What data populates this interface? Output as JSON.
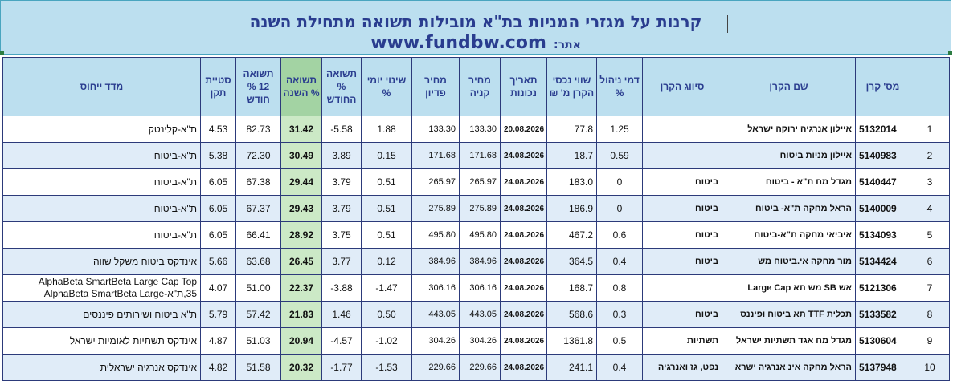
{
  "header": {
    "title": "קרנות על מגזרי המניות בת\"א מובילות תשואה מתחילת השנה",
    "site_label": "אתר:",
    "site_url": "www.fundbw.com"
  },
  "table": {
    "columns": {
      "idx": "",
      "fund_id": "מס' קרן",
      "fund_name": "שם הקרן",
      "classification": "סיווג הקרן",
      "mgmt_fee": "דמי ניהול %",
      "assets": "שווי נכסי הקרן מ' ₪",
      "valid_date": "תאריך נכונות",
      "buy_price": "מחיר קניה",
      "redemption_price": "מחיר פדיון",
      "daily_change": "שינוי יומי %",
      "month_return": "תשואה % החודש",
      "ytd_return": "תשואה % השנה",
      "return_12m": "תשואה 12 % חודש",
      "std_dev": "סטיית תקן",
      "benchmark": "מדד ייחוס"
    },
    "rows": [
      {
        "idx": "1",
        "fund_id": "5132014",
        "fund_name": "איילון אנרגיה ירוקה ישראל",
        "classification": "",
        "mgmt_fee": "1.25",
        "assets": "77.8",
        "valid_date": "20.08.2026",
        "buy_price": "133.30",
        "redemption_price": "133.30",
        "daily_change": "1.88",
        "month_return": "-5.58",
        "ytd_return": "31.42",
        "return_12m": "82.73",
        "std_dev": "4.53",
        "benchmark": "ת\"א-קלינטק"
      },
      {
        "idx": "2",
        "fund_id": "5140983",
        "fund_name": "איילון מניות ביטוח",
        "classification": "",
        "mgmt_fee": "0.59",
        "assets": "18.7",
        "valid_date": "24.08.2026",
        "buy_price": "171.68",
        "redemption_price": "171.68",
        "daily_change": "0.15",
        "month_return": "3.89",
        "ytd_return": "30.49",
        "return_12m": "72.30",
        "std_dev": "5.38",
        "benchmark": "ת\"א-ביטוח"
      },
      {
        "idx": "3",
        "fund_id": "5140447",
        "fund_name": "מגדל מח ת\"א - ביטוח",
        "classification": "ביטוח",
        "mgmt_fee": "0",
        "assets": "183.0",
        "valid_date": "24.08.2026",
        "buy_price": "265.97",
        "redemption_price": "265.97",
        "daily_change": "0.51",
        "month_return": "3.79",
        "ytd_return": "29.44",
        "return_12m": "67.38",
        "std_dev": "6.05",
        "benchmark": "ת\"א-ביטוח"
      },
      {
        "idx": "4",
        "fund_id": "5140009",
        "fund_name": "הראל מחקה ת\"א- ביטוח",
        "classification": "ביטוח",
        "mgmt_fee": "0",
        "assets": "186.9",
        "valid_date": "24.08.2026",
        "buy_price": "275.89",
        "redemption_price": "275.89",
        "daily_change": "0.51",
        "month_return": "3.79",
        "ytd_return": "29.43",
        "return_12m": "67.37",
        "std_dev": "6.05",
        "benchmark": "ת\"א-ביטוח"
      },
      {
        "idx": "5",
        "fund_id": "5134093",
        "fund_name": "איביאי מחקה ת\"א-ביטוח",
        "classification": "ביטוח",
        "mgmt_fee": "0.6",
        "assets": "467.2",
        "valid_date": "24.08.2026",
        "buy_price": "495.80",
        "redemption_price": "495.80",
        "daily_change": "0.51",
        "month_return": "3.75",
        "ytd_return": "28.92",
        "return_12m": "66.41",
        "std_dev": "6.05",
        "benchmark": "ת\"א-ביטוח"
      },
      {
        "idx": "6",
        "fund_id": "5134424",
        "fund_name": "מור מחקה אי.ביטוח מש",
        "classification": "ביטוח",
        "mgmt_fee": "0.4",
        "assets": "364.5",
        "valid_date": "24.08.2026",
        "buy_price": "384.96",
        "redemption_price": "384.96",
        "daily_change": "0.12",
        "month_return": "3.77",
        "ytd_return": "26.45",
        "return_12m": "63.68",
        "std_dev": "5.66",
        "benchmark": "אינדקס ביטוח משקל שווה"
      },
      {
        "idx": "7",
        "fund_id": "5121306",
        "fund_name": "אש SB מש תא Large Cap",
        "classification": "",
        "mgmt_fee": "0.8",
        "assets": "168.7",
        "valid_date": "24.08.2026",
        "buy_price": "306.16",
        "redemption_price": "306.16",
        "daily_change": "-1.47",
        "month_return": "-3.88",
        "ytd_return": "22.37",
        "return_12m": "51.00",
        "std_dev": "4.07",
        "benchmark": "AlphaBeta SmartBeta Large Cap Top 35,ת\"א-AlphaBeta SmartBeta Large"
      },
      {
        "idx": "8",
        "fund_id": "5133582",
        "fund_name": "תכלית TTF תא ביטוח ופיננס",
        "classification": "ביטוח",
        "mgmt_fee": "0.3",
        "assets": "568.6",
        "valid_date": "24.08.2026",
        "buy_price": "443.05",
        "redemption_price": "443.05",
        "daily_change": "0.50",
        "month_return": "1.46",
        "ytd_return": "21.83",
        "return_12m": "57.42",
        "std_dev": "5.79",
        "benchmark": "ת\"א ביטוח ושירותים פיננסים"
      },
      {
        "idx": "9",
        "fund_id": "5130604",
        "fund_name": "מגדל מח אגד תשתיות ישראל",
        "classification": "תשתיות",
        "mgmt_fee": "0.5",
        "assets": "1361.8",
        "valid_date": "24.08.2026",
        "buy_price": "304.26",
        "redemption_price": "304.26",
        "daily_change": "-1.02",
        "month_return": "-4.57",
        "ytd_return": "20.94",
        "return_12m": "51.03",
        "std_dev": "4.87",
        "benchmark": "אינדקס תשתיות לאומיות ישראל"
      },
      {
        "idx": "10",
        "fund_id": "5137948",
        "fund_name": "הראל מחקה אינ אנרגיה ישרא",
        "classification": "נפט, גז ואנרגיה",
        "mgmt_fee": "0.4",
        "assets": "241.1",
        "valid_date": "24.08.2026",
        "buy_price": "229.66",
        "redemption_price": "229.66",
        "daily_change": "-1.53",
        "month_return": "-1.77",
        "ytd_return": "20.32",
        "return_12m": "51.58",
        "std_dev": "4.82",
        "benchmark": "אינדקס אנרגיה ישראלית"
      }
    ]
  }
}
